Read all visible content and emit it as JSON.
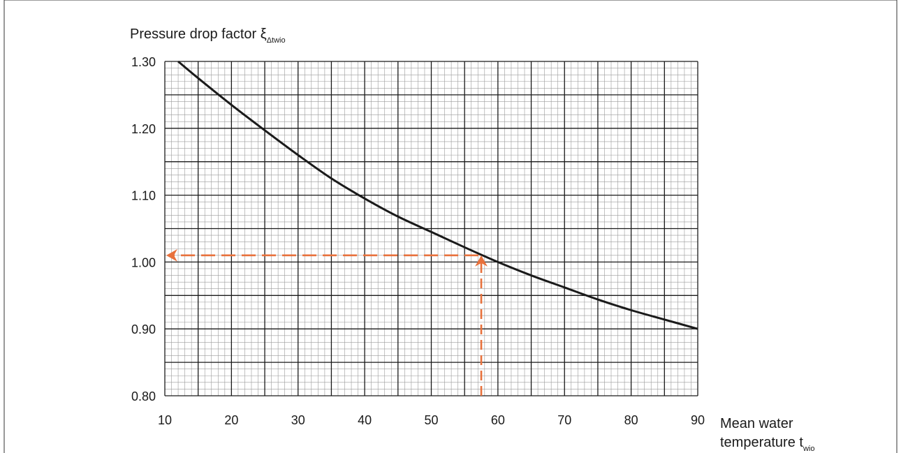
{
  "chart_data": {
    "type": "line",
    "ylabel": "Pressure drop factor ξ",
    "ylabel_sub": "Δtwio",
    "xlabel_line1": "Mean water",
    "xlabel_line2": "temperature t",
    "xlabel_sub": "wio",
    "xlim": [
      10,
      90
    ],
    "ylim": [
      0.8,
      1.3
    ],
    "x_ticks": [
      10,
      20,
      30,
      40,
      50,
      60,
      70,
      80,
      90
    ],
    "x_tick_labels": [
      "10",
      "20",
      "30",
      "40",
      "50",
      "60",
      "70",
      "80",
      "90"
    ],
    "y_ticks": [
      0.8,
      0.9,
      1.0,
      1.1,
      1.2,
      1.3
    ],
    "y_tick_labels": [
      "0.80",
      "0.90",
      "1.00",
      "1.10",
      "1.20",
      "1.30"
    ],
    "grid": true,
    "series": [
      {
        "x": [
          12,
          15,
          20,
          25,
          30,
          35,
          40,
          45,
          50,
          55,
          60,
          65,
          70,
          75,
          80,
          85,
          90
        ],
        "y": [
          1.3,
          1.275,
          1.235,
          1.197,
          1.16,
          1.125,
          1.095,
          1.068,
          1.045,
          1.022,
          1.0,
          0.98,
          0.962,
          0.944,
          0.928,
          0.914,
          0.9
        ],
        "color": "#1a1a1a"
      }
    ],
    "annotation": {
      "type": "dashed-arrows",
      "color": "#e8713c",
      "x": 57.5,
      "y": 1.01
    }
  }
}
